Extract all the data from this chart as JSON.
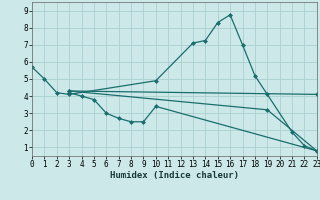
{
  "bg_color": "#cce8e8",
  "grid_color": "#aad0d0",
  "line_color": "#1a6e6e",
  "series": [
    {
      "x": [
        0,
        1,
        2,
        3,
        10,
        13,
        14,
        15,
        16,
        17,
        18,
        19,
        21,
        22,
        23
      ],
      "y": [
        5.7,
        5.0,
        4.2,
        4.1,
        4.9,
        7.1,
        7.25,
        8.3,
        8.75,
        7.0,
        5.2,
        4.1,
        1.9,
        1.1,
        0.8
      ]
    },
    {
      "x": [
        3,
        4,
        5,
        6,
        7,
        8,
        9,
        10,
        23
      ],
      "y": [
        4.2,
        4.0,
        3.8,
        3.0,
        2.7,
        2.5,
        2.5,
        3.4,
        0.8
      ]
    },
    {
      "x": [
        3,
        23
      ],
      "y": [
        4.3,
        4.1
      ]
    },
    {
      "x": [
        3,
        19,
        23
      ],
      "y": [
        4.3,
        3.2,
        0.8
      ]
    }
  ],
  "xlim": [
    0,
    23
  ],
  "ylim": [
    0.5,
    9.5
  ],
  "xticks": [
    0,
    1,
    2,
    3,
    4,
    5,
    6,
    7,
    8,
    9,
    10,
    11,
    12,
    13,
    14,
    15,
    16,
    17,
    18,
    19,
    20,
    21,
    22,
    23
  ],
  "yticks": [
    1,
    2,
    3,
    4,
    5,
    6,
    7,
    8,
    9
  ],
  "xlabel": "Humidex (Indice chaleur)",
  "xlabel_fontsize": 6.5,
  "tick_fontsize": 5.5,
  "marker": "D",
  "marker_size": 2.0,
  "line_width": 0.9
}
